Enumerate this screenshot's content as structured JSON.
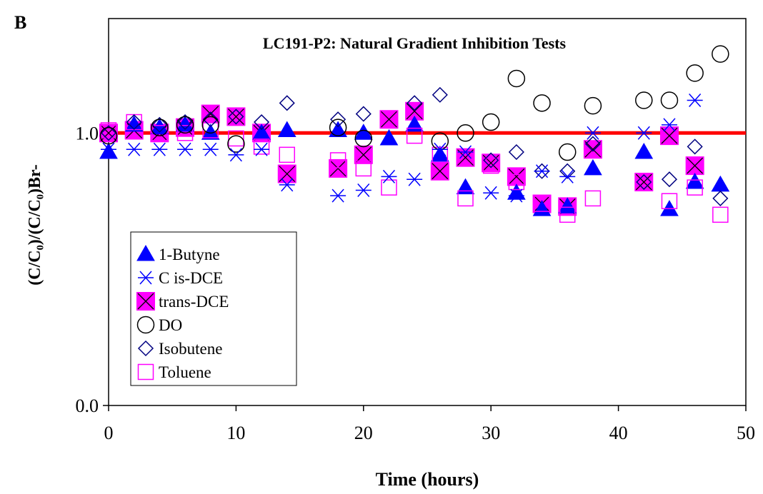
{
  "panel_label": "B",
  "chart_data": {
    "type": "scatter",
    "title": "LC191-P2: Natural Gradient Inhibition Tests",
    "xlabel": "Time (hours)",
    "ylabel": "(C/C₀)/(C/C₀)Br-",
    "xlim": [
      0,
      50
    ],
    "ylim": [
      0,
      1.42
    ],
    "x_ticks": [
      0,
      10,
      20,
      30,
      40,
      50
    ],
    "x_tick_labels": [
      "0",
      "10",
      "20",
      "30",
      "40",
      "50"
    ],
    "y_ticks": [
      0,
      1
    ],
    "y_tick_labels": [
      "0.0",
      "1.0"
    ],
    "grid": false,
    "legend_position": "bottom-left",
    "reference_line": {
      "y": 1.0,
      "color": "#ff0000"
    },
    "series": [
      {
        "name": "1-Butyne",
        "marker": "triangle-filled",
        "color": "#0000ff",
        "x": [
          0,
          2,
          4,
          6,
          8,
          12,
          14,
          18,
          20,
          22,
          24,
          26,
          28,
          32,
          34,
          36,
          38,
          42,
          44,
          46,
          48
        ],
        "y": [
          0.93,
          1.03,
          1.02,
          1.03,
          1.0,
          1.0,
          1.01,
          1.01,
          1.0,
          0.98,
          1.03,
          0.92,
          0.8,
          0.78,
          0.72,
          0.73,
          0.87,
          0.93,
          0.72,
          0.82,
          0.81
        ]
      },
      {
        "name": "C is-DCE",
        "marker": "asterisk",
        "color": "#0000ff",
        "x": [
          0,
          2,
          4,
          6,
          8,
          10,
          12,
          14,
          18,
          20,
          22,
          24,
          26,
          28,
          30,
          32,
          34,
          36,
          38,
          42,
          44,
          46
        ],
        "y": [
          0.94,
          0.94,
          0.94,
          0.94,
          0.94,
          0.92,
          0.94,
          0.81,
          0.77,
          0.79,
          0.84,
          0.83,
          0.94,
          0.93,
          0.78,
          0.77,
          0.86,
          0.84,
          1.0,
          1.0,
          1.03,
          1.12
        ]
      },
      {
        "name": "trans-DCE",
        "marker": "x-box-filled",
        "color": "#ff00ff",
        "x": [
          0,
          2,
          4,
          6,
          8,
          10,
          12,
          14,
          18,
          20,
          22,
          24,
          26,
          28,
          30,
          32,
          34,
          36,
          38,
          42,
          44,
          46
        ],
        "y": [
          1.0,
          1.01,
          1.0,
          1.02,
          1.07,
          1.06,
          1.0,
          0.85,
          0.87,
          0.92,
          1.05,
          1.08,
          0.86,
          0.91,
          0.89,
          0.84,
          0.74,
          0.73,
          0.94,
          0.82,
          0.99,
          0.88
        ]
      },
      {
        "name": "DO",
        "marker": "circle-open",
        "color": "#000000",
        "x": [
          0,
          4,
          6,
          8,
          10,
          18,
          20,
          26,
          28,
          30,
          32,
          34,
          36,
          38,
          42,
          44,
          46,
          48
        ],
        "y": [
          0.99,
          1.02,
          1.03,
          1.03,
          0.96,
          1.02,
          0.98,
          0.97,
          1.0,
          1.04,
          1.2,
          1.11,
          0.93,
          1.1,
          1.12,
          1.12,
          1.22,
          1.29
        ]
      },
      {
        "name": "Isobutene",
        "marker": "diamond-open",
        "color": "#000080",
        "x": [
          0,
          2,
          4,
          6,
          8,
          10,
          12,
          14,
          18,
          20,
          24,
          26,
          30,
          32,
          34,
          36,
          38,
          42,
          44,
          46,
          48
        ],
        "y": [
          1.0,
          1.04,
          1.03,
          1.04,
          1.05,
          1.06,
          1.04,
          1.11,
          1.05,
          1.07,
          1.11,
          1.14,
          0.9,
          0.93,
          0.86,
          0.86,
          0.96,
          0.82,
          0.83,
          0.95,
          0.76
        ]
      },
      {
        "name": "Toluene",
        "marker": "square-open",
        "color": "#ff00ff",
        "x": [
          0,
          2,
          4,
          6,
          8,
          10,
          12,
          14,
          18,
          20,
          22,
          24,
          26,
          28,
          30,
          32,
          34,
          36,
          38,
          44,
          46,
          48
        ],
        "y": [
          1.01,
          1.04,
          1.0,
          1.0,
          1.01,
          0.98,
          0.95,
          0.92,
          0.9,
          0.87,
          0.8,
          0.99,
          0.92,
          0.76,
          0.88,
          0.82,
          0.74,
          0.7,
          0.76,
          0.75,
          0.8,
          0.7
        ]
      }
    ]
  }
}
